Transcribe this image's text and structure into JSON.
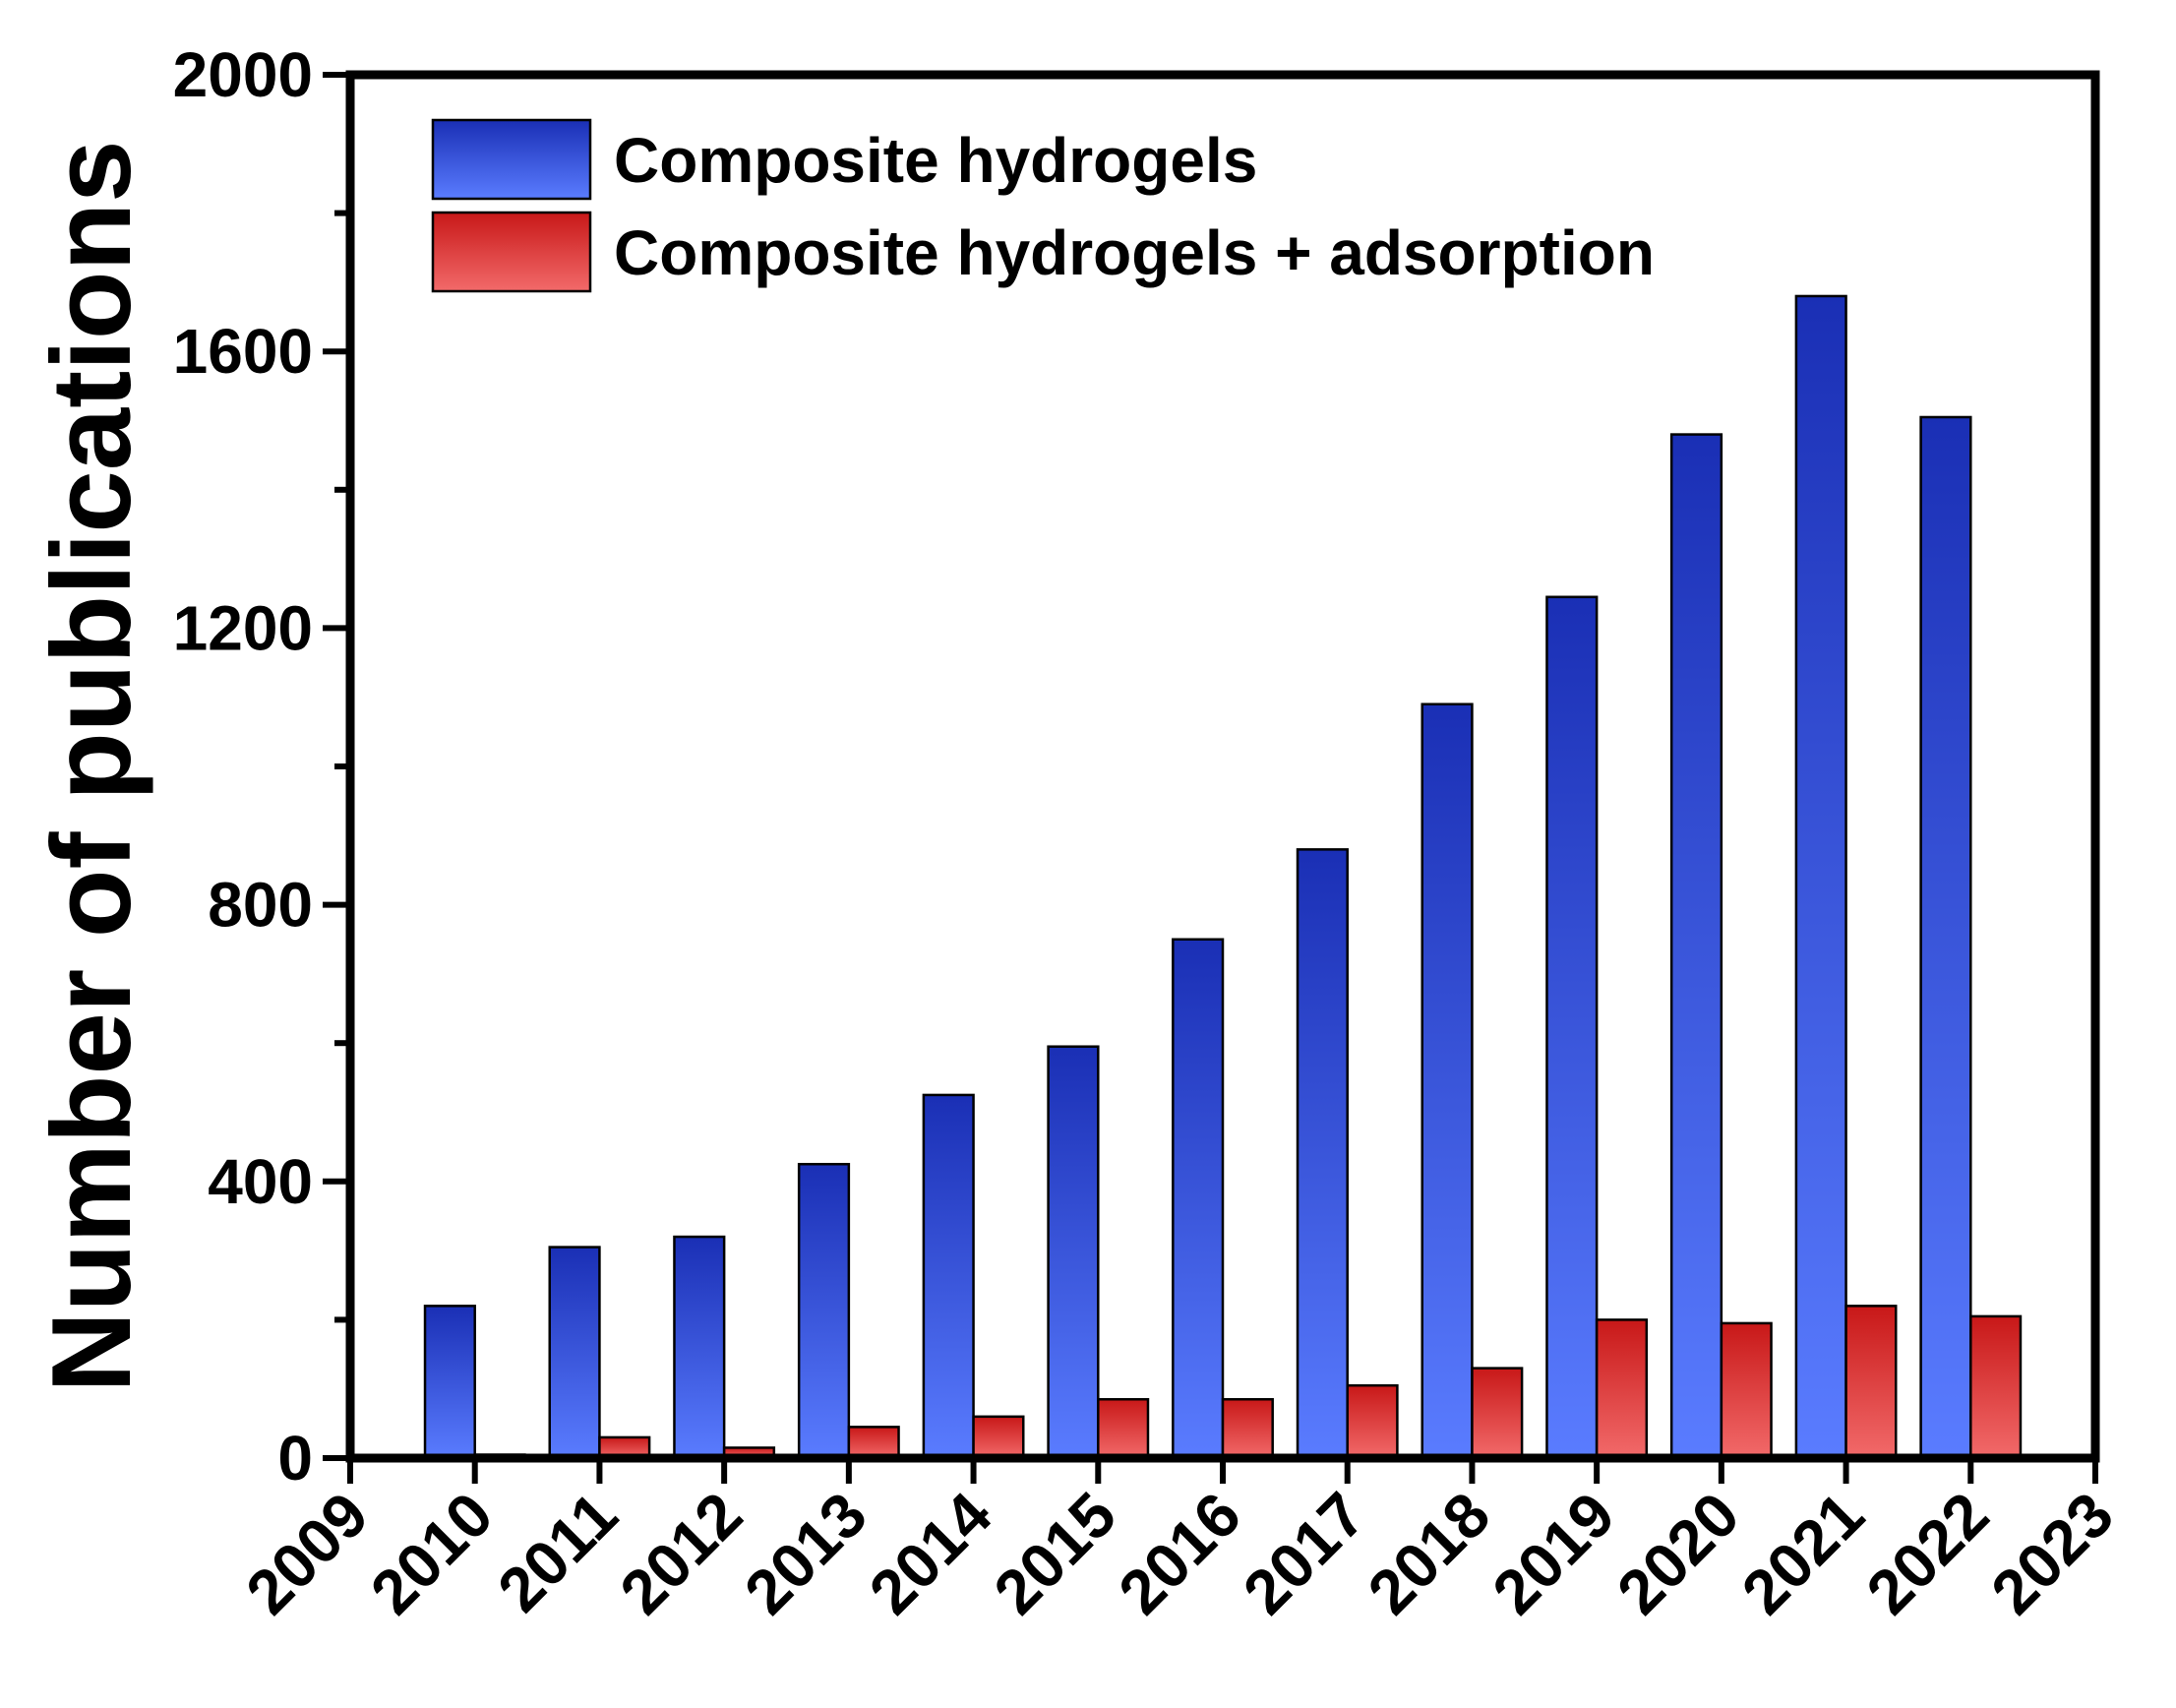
{
  "chart_data": {
    "type": "bar",
    "categories": [
      "2010",
      "2011",
      "2012",
      "2013",
      "2014",
      "2015",
      "2016",
      "2017",
      "2018",
      "2019",
      "2020",
      "2021",
      "2022"
    ],
    "x_ticks": [
      "2009",
      "2010",
      "2011",
      "2012",
      "2013",
      "2014",
      "2015",
      "2016",
      "2017",
      "2018",
      "2019",
      "2020",
      "2021",
      "2022",
      "2023"
    ],
    "xlim": [
      2009,
      2023
    ],
    "series": [
      {
        "name": "Composite hydrogels",
        "values": [
          220,
          305,
          320,
          425,
          525,
          595,
          750,
          880,
          1090,
          1245,
          1480,
          1680,
          1505
        ],
        "color_top": "#1a2fb5",
        "color_bottom": "#5a7cff"
      },
      {
        "name": "Composite hydrogels + adsorption",
        "values": [
          5,
          30,
          15,
          45,
          60,
          85,
          85,
          105,
          130,
          200,
          195,
          220,
          205
        ],
        "color_top": "#c81818",
        "color_bottom": "#f26a6a"
      }
    ],
    "xlabel": "",
    "ylabel": "Number of publications",
    "ylim": [
      0,
      2000
    ],
    "y_ticks": [
      0,
      400,
      800,
      1200,
      1600,
      2000
    ],
    "y_minor_step": 200,
    "legend_position": "top-left",
    "grid": false
  }
}
